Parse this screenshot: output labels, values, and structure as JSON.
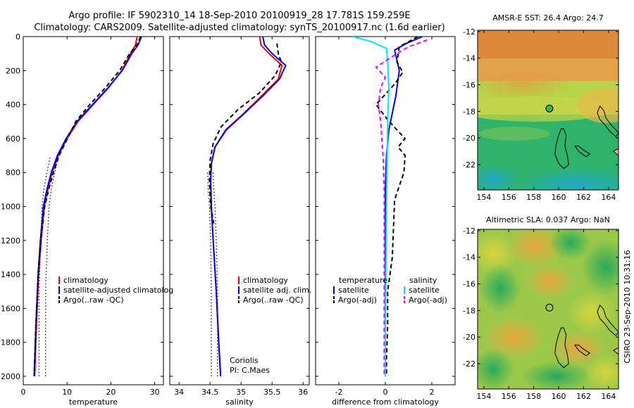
{
  "title_line1": "Argo profile: IF 5902310_14 18-Sep-2010 20100919_28 17.781S 159.259E",
  "title_line2": "Climatology: CARS2009. Satellite-adjusted climatology: synTS_20100917.nc (1.6d earlier)",
  "side_stamp": "CSIRO 23-Sep-2010 10:31:16",
  "colors": {
    "climatology": "#ff0000",
    "satellite": "#0000ff",
    "argo": "#000000",
    "sat_sal": "#00e5ff",
    "argo_sal": "#ff00ff"
  },
  "chart_data": [
    {
      "type": "line",
      "xlabel": "temperature",
      "xlim": [
        0,
        32
      ],
      "ylim": [
        0,
        2050
      ],
      "xticks": [
        0,
        10,
        20,
        30
      ],
      "yticks": [
        0,
        200,
        400,
        600,
        800,
        1000,
        1200,
        1400,
        1600,
        1800,
        2000
      ],
      "legend": [
        "climatology",
        "satellite-adjusted climatolog",
        "Argo(..raw -QC)"
      ],
      "dotted_lines": [
        {
          "x": [
            3.6,
            3.6,
            4.0,
            4.3,
            4.7,
            5.4,
            6.2
          ],
          "y": [
            2000,
            1500,
            1200,
            1000,
            900,
            800,
            700
          ]
        },
        {
          "x": [
            5.1,
            5.1,
            5.5,
            5.9,
            6.4,
            7.2,
            8.0
          ],
          "y": [
            2000,
            1500,
            1200,
            1000,
            900,
            800,
            700
          ]
        }
      ],
      "series": [
        {
          "name": "climatology",
          "x": [
            26.0,
            25.6,
            24.5,
            22.5,
            19.5,
            16.0,
            12.5,
            10.0,
            8.0,
            6.6,
            5.6,
            4.8,
            4.1,
            3.5,
            3.0,
            2.6
          ],
          "y": [
            0,
            50,
            100,
            200,
            300,
            400,
            500,
            600,
            700,
            800,
            900,
            1000,
            1200,
            1400,
            1700,
            2000
          ]
        },
        {
          "name": "satellite-adjusted climatolog",
          "x": [
            27.0,
            26.2,
            24.8,
            22.6,
            19.4,
            15.8,
            12.3,
            9.8,
            7.8,
            6.4,
            5.4,
            4.6,
            3.9,
            3.4,
            2.9,
            2.5
          ],
          "y": [
            0,
            50,
            100,
            200,
            300,
            400,
            500,
            600,
            700,
            800,
            900,
            1000,
            1200,
            1400,
            1700,
            2000
          ]
        },
        {
          "name": "Argo(..raw -QC)",
          "dashed": true,
          "x": [
            26.8,
            25.9,
            24.3,
            22.0,
            18.8,
            15.2,
            12.0,
            10.1,
            8.2,
            6.9,
            5.8,
            4.9,
            4.0,
            3.4,
            2.9,
            2.5
          ],
          "y": [
            0,
            50,
            100,
            200,
            300,
            400,
            500,
            600,
            700,
            800,
            900,
            1000,
            1200,
            1400,
            1700,
            2000
          ]
        }
      ]
    },
    {
      "type": "line",
      "xlabel": "salinity",
      "xlim": [
        33.85,
        36.1
      ],
      "ylim": [
        0,
        2050
      ],
      "xticks": [
        34,
        34.5,
        35,
        35.5,
        36
      ],
      "yticks": [
        0,
        200,
        400,
        600,
        800,
        1000,
        1200,
        1400,
        1600,
        1800,
        2000
      ],
      "legend": [
        "climatology",
        "satellite adj. clim.",
        "Argo(..raw -QC)"
      ],
      "annotations": [
        "Coriolis",
        "PI: C.Maes"
      ],
      "dotted_lines": [
        {
          "x": [
            34.52,
            34.52,
            34.51,
            34.49,
            34.47,
            34.46
          ],
          "y": [
            2000,
            1500,
            1200,
            1000,
            900,
            800
          ]
        },
        {
          "x": [
            34.62,
            34.62,
            34.6,
            34.58,
            34.56,
            34.55
          ],
          "y": [
            2000,
            1500,
            1200,
            1000,
            900,
            800
          ]
        }
      ],
      "series": [
        {
          "name": "climatology",
          "x": [
            35.3,
            35.32,
            35.45,
            35.66,
            35.6,
            35.33,
            35.05,
            34.75,
            34.58,
            34.52,
            34.51,
            34.52,
            34.55,
            34.6,
            34.64,
            34.67
          ],
          "y": [
            0,
            50,
            100,
            170,
            250,
            350,
            450,
            550,
            650,
            750,
            850,
            1000,
            1200,
            1500,
            1800,
            2000
          ]
        },
        {
          "name": "satellite adj. clim.",
          "x": [
            35.35,
            35.38,
            35.5,
            35.72,
            35.62,
            35.35,
            35.06,
            34.76,
            34.58,
            34.52,
            34.51,
            34.52,
            34.55,
            34.6,
            34.64,
            34.67
          ],
          "y": [
            0,
            50,
            100,
            170,
            250,
            350,
            450,
            550,
            650,
            750,
            850,
            1000,
            1200,
            1500,
            1800,
            2000
          ]
        },
        {
          "name": "Argo(..raw -QC)",
          "dashed": true,
          "x": [
            35.58,
            35.6,
            35.65,
            35.55,
            35.3,
            34.95,
            34.68,
            34.55,
            34.5,
            34.49,
            34.51,
            34.56
          ],
          "y": [
            40,
            100,
            150,
            230,
            330,
            430,
            530,
            630,
            730,
            850,
            1000,
            1100
          ]
        }
      ]
    },
    {
      "type": "line",
      "xlabel": "difference from climatology",
      "xlim": [
        -3,
        3
      ],
      "ylim": [
        0,
        2050
      ],
      "xticks": [
        -2,
        0,
        2
      ],
      "yticks": [
        0,
        200,
        400,
        600,
        800,
        1000,
        1200,
        1400,
        1600,
        1800,
        2000
      ],
      "legend_headers": [
        "temperature",
        "salinity"
      ],
      "legend": [
        "satellite",
        "Argo(-adj)",
        "satellite",
        "Argo(-adj)"
      ],
      "series": [
        {
          "name": "satellite",
          "group": "temperature",
          "x": [
            1.6,
            0.9,
            0.4,
            0.6,
            0.45,
            0.3,
            0.15,
            0.05,
            0.0,
            0.0,
            0.0,
            0.0
          ],
          "y": [
            0,
            40,
            80,
            200,
            350,
            450,
            550,
            700,
            900,
            1200,
            1600,
            2000
          ]
        },
        {
          "name": "Argo(-adj)",
          "group": "temperature",
          "dashed": true,
          "x": [
            1.4,
            0.6,
            0.5,
            0.75,
            0.4,
            -0.4,
            0.05,
            0.5,
            0.85,
            0.55,
            0.85,
            0.8,
            0.6,
            0.4,
            0.3,
            0.1,
            0.1,
            0.05,
            0.05
          ],
          "y": [
            0,
            60,
            150,
            210,
            280,
            400,
            480,
            550,
            600,
            650,
            700,
            800,
            880,
            960,
            1300,
            1500,
            1700,
            1900,
            2000
          ]
        },
        {
          "name": "satellite",
          "group": "salinity",
          "x": [
            -1.4,
            -0.6,
            0.05,
            0.1,
            0.15,
            0.1,
            0.08,
            0.05,
            0.02,
            0.0,
            0.0
          ],
          "y": [
            0,
            30,
            70,
            150,
            300,
            500,
            700,
            1000,
            1400,
            1800,
            2000
          ]
        },
        {
          "name": "Argo(-adj)",
          "group": "salinity",
          "dashed": true,
          "x": [
            1.8,
            1.0,
            0.5,
            -0.4,
            0.0,
            -0.2,
            -0.3,
            -0.2,
            -0.1,
            -0.05,
            -0.05,
            -0.05,
            -0.05
          ],
          "y": [
            20,
            60,
            100,
            180,
            240,
            300,
            400,
            500,
            700,
            900,
            1200,
            1600,
            2000
          ]
        }
      ]
    },
    {
      "type": "heatmap",
      "title": "AMSR-E SST: 26.4 Argo: 24.7",
      "xlim": [
        153.5,
        164.8
      ],
      "ylim": [
        -23.9,
        -11.9
      ],
      "xticks": [
        154,
        156,
        158,
        160,
        162,
        164
      ],
      "yticks": [
        -12,
        -14,
        -16,
        -18,
        -20,
        -22
      ],
      "marker": {
        "lon": 159.259,
        "lat": -17.781
      }
    },
    {
      "type": "heatmap",
      "title": "Altimetric SLA: 0.037 Argo: NaN",
      "xlim": [
        153.5,
        164.8
      ],
      "ylim": [
        -23.9,
        -11.9
      ],
      "xticks": [
        154,
        156,
        158,
        160,
        162,
        164
      ],
      "yticks": [
        -12,
        -14,
        -16,
        -18,
        -20,
        -22
      ],
      "marker": {
        "lon": 159.259,
        "lat": -17.781
      }
    }
  ]
}
